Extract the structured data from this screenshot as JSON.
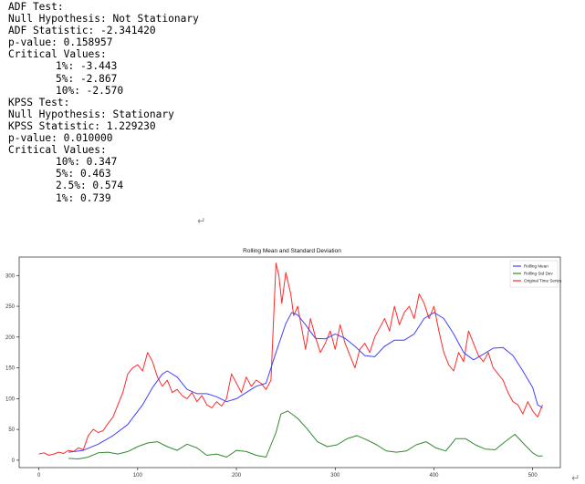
{
  "console": {
    "adf_header": "ADF Test:",
    "adf_null": "Null Hypothesis: Not Stationary",
    "adf_stat": "ADF Statistic: -2.341420",
    "adf_p": "p-value: 0.158957",
    "adf_crit_header": "Critical Values:",
    "adf_crit": [
      "1%: -3.443",
      "5%: -2.867",
      "10%: -2.570"
    ],
    "kpss_header": "KPSS Test:",
    "kpss_null": "Null Hypothesis: Stationary",
    "kpss_stat": "KPSS Statistic: 1.229230",
    "kpss_p": "p-value: 0.010000",
    "kpss_crit_header": "Critical Values:",
    "kpss_crit": [
      "10%: 0.347",
      "5%: 0.463",
      "2.5%: 0.574",
      "1%: 0.739"
    ],
    "enter_glyph": "↵"
  },
  "chart_data": {
    "type": "line",
    "title": "Rolling Mean and Standard Deviation",
    "xlabel": "",
    "ylabel": "",
    "xlim": [
      -20,
      528
    ],
    "ylim": [
      -12,
      330
    ],
    "xticks": [
      0,
      100,
      200,
      300,
      400,
      500
    ],
    "yticks": [
      0,
      50,
      100,
      150,
      200,
      250,
      300
    ],
    "grid": false,
    "legend_position": "top-right",
    "series": [
      {
        "name": "Rolling Mean",
        "color": "#4040ff",
        "points": [
          [
            30,
            13
          ],
          [
            45,
            16
          ],
          [
            60,
            26
          ],
          [
            75,
            40
          ],
          [
            90,
            58
          ],
          [
            105,
            90
          ],
          [
            115,
            118
          ],
          [
            125,
            140
          ],
          [
            130,
            145
          ],
          [
            140,
            135
          ],
          [
            150,
            115
          ],
          [
            160,
            108
          ],
          [
            170,
            108
          ],
          [
            180,
            103
          ],
          [
            190,
            95
          ],
          [
            200,
            100
          ],
          [
            210,
            110
          ],
          [
            220,
            120
          ],
          [
            230,
            125
          ],
          [
            240,
            175
          ],
          [
            250,
            222
          ],
          [
            256,
            240
          ],
          [
            262,
            236
          ],
          [
            270,
            220
          ],
          [
            280,
            198
          ],
          [
            290,
            197
          ],
          [
            300,
            205
          ],
          [
            310,
            198
          ],
          [
            320,
            185
          ],
          [
            330,
            170
          ],
          [
            340,
            168
          ],
          [
            350,
            185
          ],
          [
            360,
            195
          ],
          [
            370,
            195
          ],
          [
            380,
            205
          ],
          [
            390,
            230
          ],
          [
            400,
            240
          ],
          [
            410,
            230
          ],
          [
            420,
            205
          ],
          [
            430,
            175
          ],
          [
            440,
            163
          ],
          [
            450,
            172
          ],
          [
            460,
            182
          ],
          [
            470,
            183
          ],
          [
            480,
            170
          ],
          [
            490,
            145
          ],
          [
            500,
            118
          ],
          [
            505,
            90
          ],
          [
            510,
            85
          ]
        ]
      },
      {
        "name": "Rolling Std Dev",
        "color": "#2e8b2e",
        "points": [
          [
            30,
            3
          ],
          [
            40,
            2
          ],
          [
            50,
            5
          ],
          [
            60,
            12
          ],
          [
            70,
            13
          ],
          [
            80,
            10
          ],
          [
            90,
            14
          ],
          [
            100,
            22
          ],
          [
            110,
            28
          ],
          [
            120,
            30
          ],
          [
            130,
            22
          ],
          [
            140,
            16
          ],
          [
            150,
            26
          ],
          [
            160,
            20
          ],
          [
            170,
            8
          ],
          [
            180,
            10
          ],
          [
            190,
            5
          ],
          [
            200,
            16
          ],
          [
            210,
            14
          ],
          [
            220,
            8
          ],
          [
            230,
            5
          ],
          [
            240,
            45
          ],
          [
            245,
            75
          ],
          [
            252,
            80
          ],
          [
            262,
            68
          ],
          [
            272,
            50
          ],
          [
            282,
            30
          ],
          [
            292,
            22
          ],
          [
            302,
            25
          ],
          [
            312,
            35
          ],
          [
            322,
            40
          ],
          [
            332,
            33
          ],
          [
            342,
            25
          ],
          [
            352,
            15
          ],
          [
            362,
            13
          ],
          [
            372,
            15
          ],
          [
            382,
            25
          ],
          [
            392,
            30
          ],
          [
            402,
            20
          ],
          [
            412,
            15
          ],
          [
            422,
            35
          ],
          [
            432,
            35
          ],
          [
            442,
            25
          ],
          [
            452,
            18
          ],
          [
            462,
            17
          ],
          [
            472,
            30
          ],
          [
            482,
            42
          ],
          [
            492,
            25
          ],
          [
            500,
            12
          ],
          [
            505,
            7
          ],
          [
            510,
            7
          ]
        ]
      },
      {
        "name": "Original Time Series",
        "color": "#ff2a2a",
        "points": [
          [
            0,
            10
          ],
          [
            5,
            12
          ],
          [
            10,
            8
          ],
          [
            15,
            10
          ],
          [
            20,
            13
          ],
          [
            25,
            11
          ],
          [
            30,
            16
          ],
          [
            35,
            14
          ],
          [
            40,
            20
          ],
          [
            45,
            17
          ],
          [
            50,
            40
          ],
          [
            55,
            50
          ],
          [
            60,
            45
          ],
          [
            65,
            48
          ],
          [
            70,
            60
          ],
          [
            75,
            70
          ],
          [
            80,
            90
          ],
          [
            85,
            110
          ],
          [
            90,
            140
          ],
          [
            95,
            150
          ],
          [
            100,
            155
          ],
          [
            105,
            145
          ],
          [
            110,
            175
          ],
          [
            115,
            160
          ],
          [
            120,
            135
          ],
          [
            125,
            120
          ],
          [
            130,
            130
          ],
          [
            135,
            110
          ],
          [
            140,
            115
          ],
          [
            145,
            105
          ],
          [
            150,
            100
          ],
          [
            155,
            110
          ],
          [
            160,
            95
          ],
          [
            165,
            105
          ],
          [
            170,
            90
          ],
          [
            175,
            85
          ],
          [
            180,
            95
          ],
          [
            185,
            88
          ],
          [
            190,
            100
          ],
          [
            195,
            140
          ],
          [
            200,
            125
          ],
          [
            205,
            110
          ],
          [
            210,
            135
          ],
          [
            215,
            120
          ],
          [
            220,
            130
          ],
          [
            225,
            125
          ],
          [
            230,
            115
          ],
          [
            235,
            130
          ],
          [
            240,
            320
          ],
          [
            243,
            300
          ],
          [
            246,
            255
          ],
          [
            250,
            305
          ],
          [
            255,
            270
          ],
          [
            258,
            235
          ],
          [
            262,
            250
          ],
          [
            266,
            215
          ],
          [
            270,
            180
          ],
          [
            275,
            230
          ],
          [
            280,
            200
          ],
          [
            285,
            175
          ],
          [
            290,
            190
          ],
          [
            295,
            210
          ],
          [
            300,
            180
          ],
          [
            305,
            220
          ],
          [
            310,
            190
          ],
          [
            315,
            170
          ],
          [
            320,
            150
          ],
          [
            325,
            180
          ],
          [
            330,
            190
          ],
          [
            335,
            175
          ],
          [
            340,
            200
          ],
          [
            345,
            215
          ],
          [
            350,
            230
          ],
          [
            355,
            210
          ],
          [
            360,
            250
          ],
          [
            365,
            220
          ],
          [
            370,
            240
          ],
          [
            375,
            250
          ],
          [
            380,
            230
          ],
          [
            385,
            270
          ],
          [
            390,
            255
          ],
          [
            395,
            230
          ],
          [
            400,
            250
          ],
          [
            405,
            210
          ],
          [
            410,
            175
          ],
          [
            415,
            155
          ],
          [
            420,
            145
          ],
          [
            425,
            175
          ],
          [
            430,
            160
          ],
          [
            435,
            210
          ],
          [
            440,
            190
          ],
          [
            445,
            170
          ],
          [
            450,
            160
          ],
          [
            455,
            175
          ],
          [
            460,
            150
          ],
          [
            465,
            140
          ],
          [
            470,
            130
          ],
          [
            475,
            110
          ],
          [
            480,
            95
          ],
          [
            485,
            90
          ],
          [
            490,
            75
          ],
          [
            495,
            95
          ],
          [
            500,
            80
          ],
          [
            505,
            70
          ],
          [
            510,
            90
          ]
        ]
      }
    ]
  }
}
